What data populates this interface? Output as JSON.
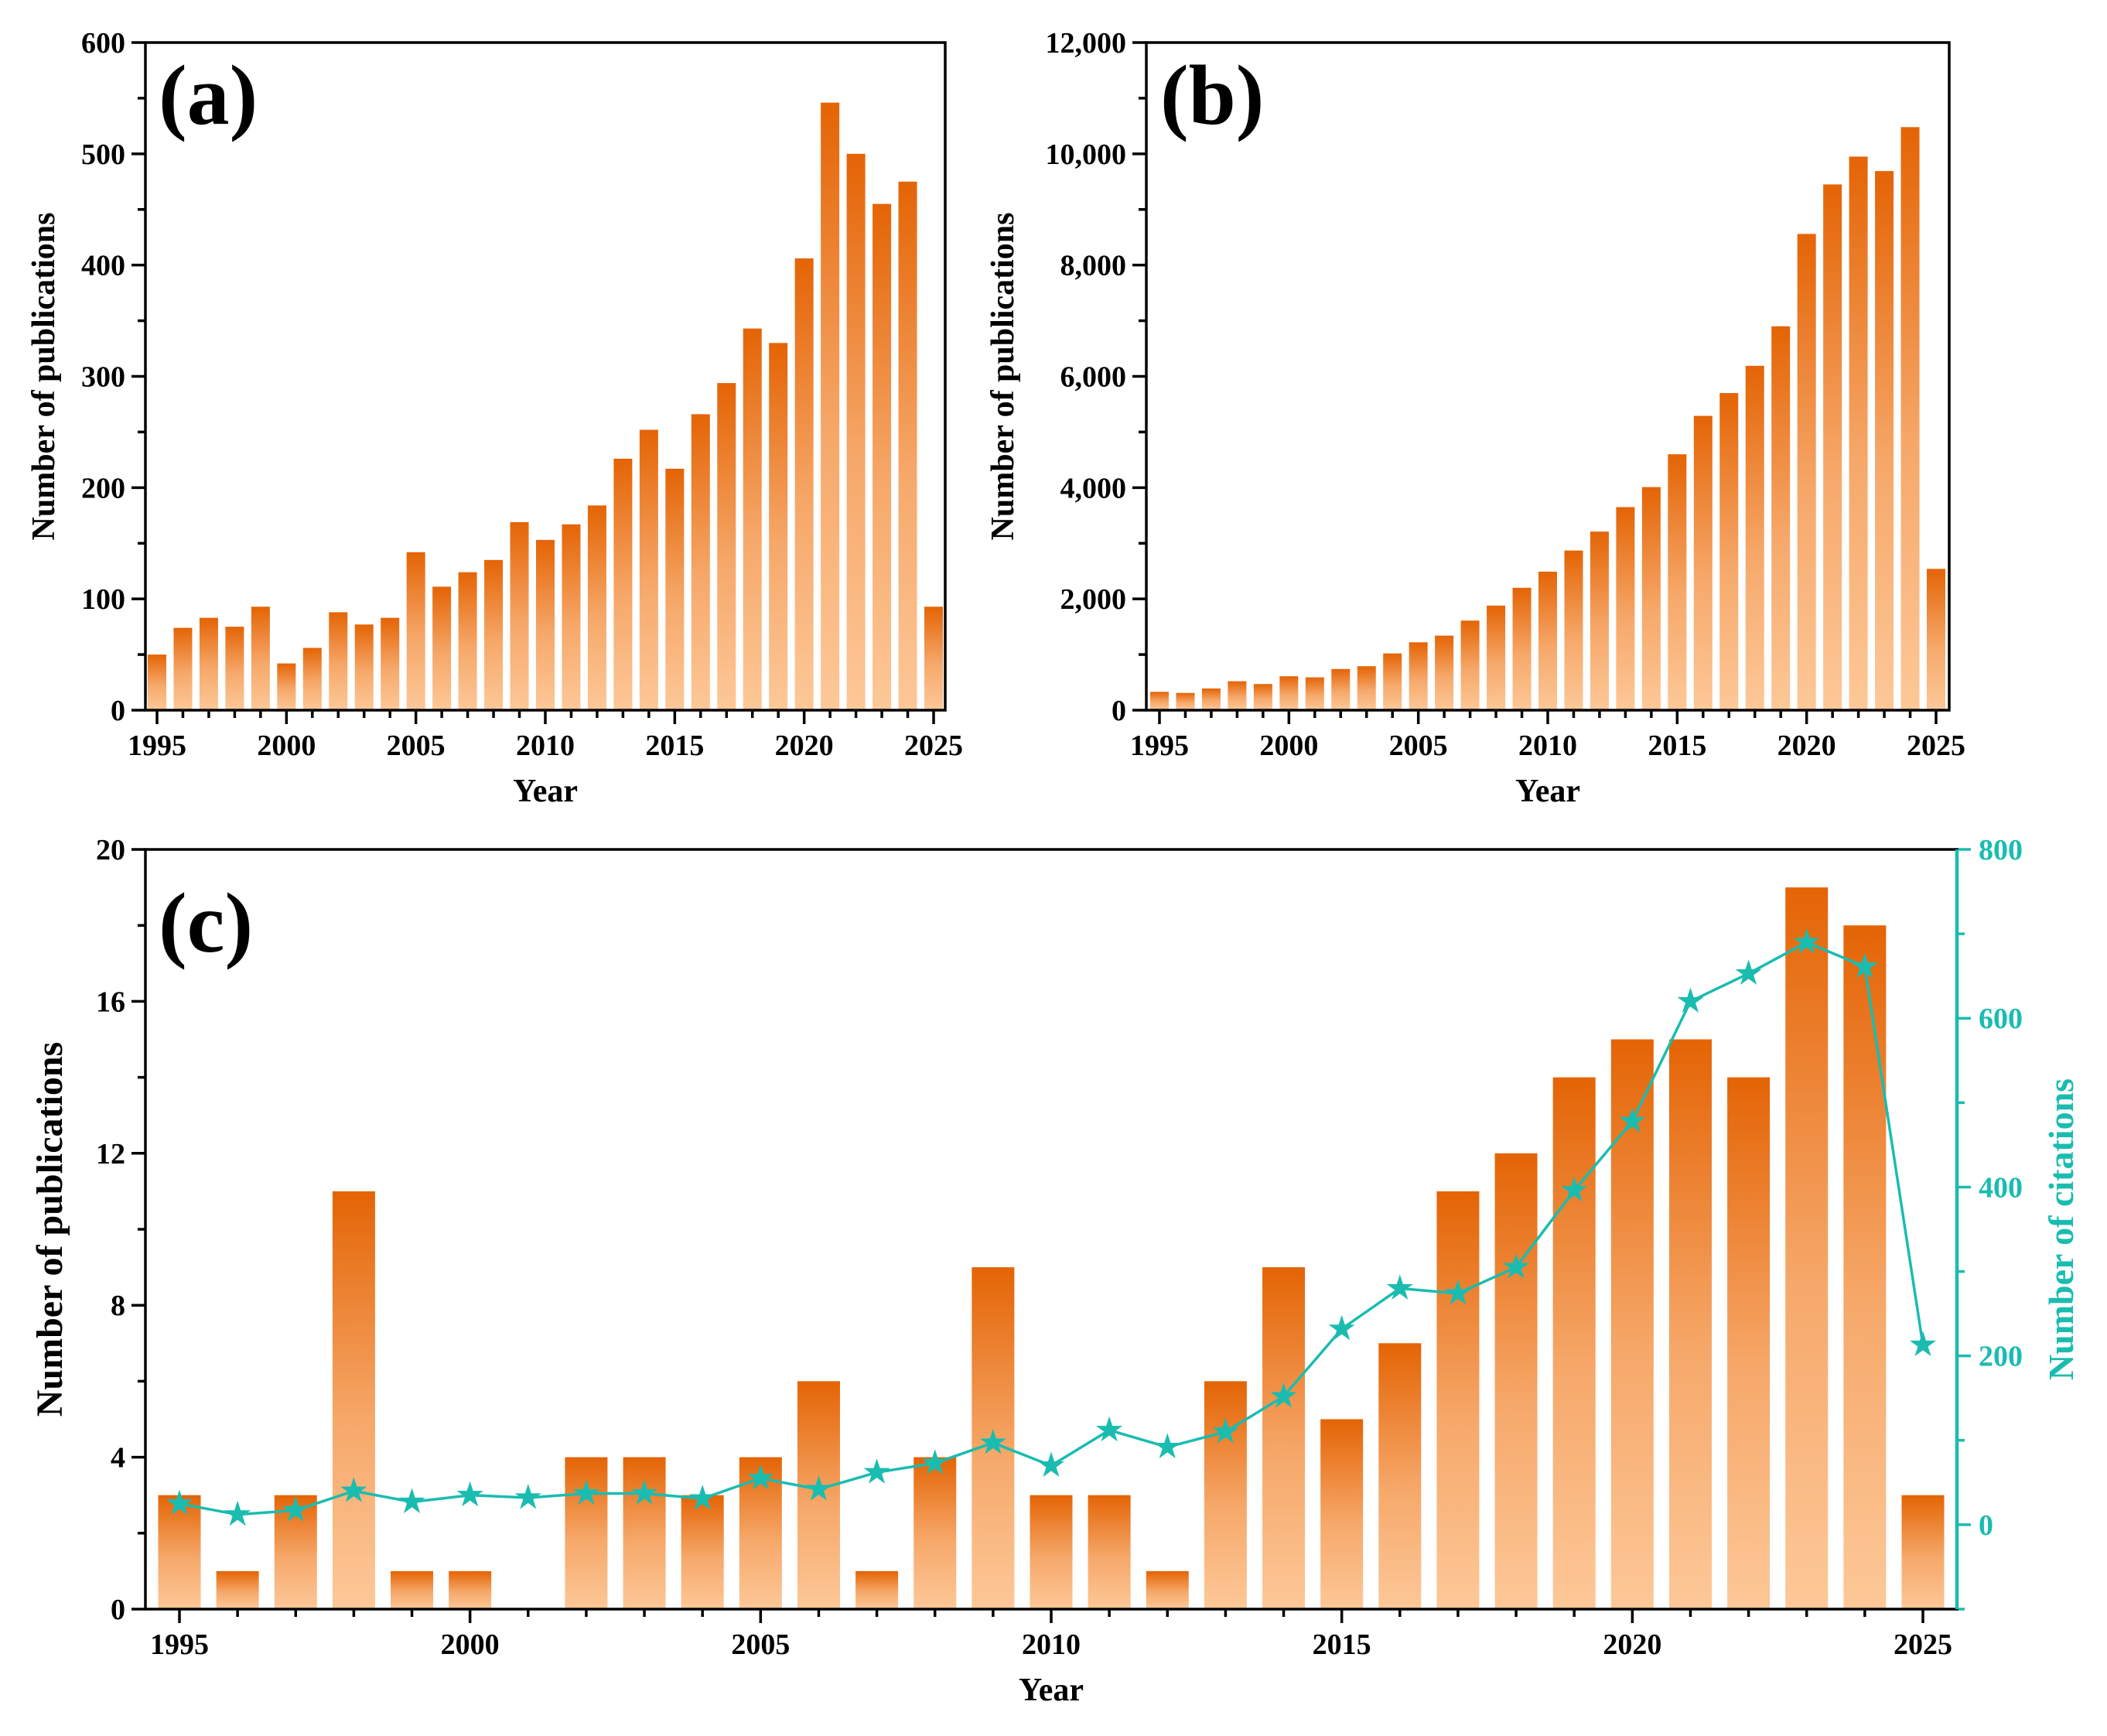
{
  "colors": {
    "bar_top": "#e46405",
    "bar_bottom": "#fdc898",
    "citation_line": "#1abcb0",
    "axis": "#000000"
  },
  "chart_data": [
    {
      "id": "a",
      "panel_label": "(a)",
      "type": "bar",
      "xlabel": "Year",
      "ylabel": "Number of publications",
      "x": [
        1995,
        1996,
        1997,
        1998,
        1999,
        2000,
        2001,
        2002,
        2003,
        2004,
        2005,
        2006,
        2007,
        2008,
        2009,
        2010,
        2011,
        2012,
        2013,
        2014,
        2015,
        2016,
        2017,
        2018,
        2019,
        2020,
        2021,
        2022,
        2023,
        2024,
        2025
      ],
      "values": [
        50,
        74,
        83,
        75,
        93,
        42,
        56,
        88,
        77,
        83,
        142,
        111,
        124,
        135,
        169,
        153,
        167,
        184,
        226,
        252,
        217,
        266,
        294,
        343,
        330,
        406,
        546,
        500,
        455,
        475,
        93
      ],
      "ylim": [
        0,
        600
      ],
      "yticks": [
        0,
        100,
        200,
        300,
        400,
        500,
        600
      ],
      "ytick_labels": [
        "0",
        "100",
        "200",
        "300",
        "400",
        "500",
        "600"
      ],
      "xticks": [
        1995,
        2000,
        2005,
        2010,
        2015,
        2020,
        2025
      ],
      "xtick_labels": [
        "1995",
        "2000",
        "2005",
        "2010",
        "2015",
        "2020",
        "2025"
      ]
    },
    {
      "id": "b",
      "panel_label": "(b)",
      "type": "bar",
      "xlabel": "Year",
      "ylabel": "Number of publications",
      "x": [
        1995,
        1996,
        1997,
        1998,
        1999,
        2000,
        2001,
        2002,
        2003,
        2004,
        2005,
        2006,
        2007,
        2008,
        2009,
        2010,
        2011,
        2012,
        2013,
        2014,
        2015,
        2016,
        2017,
        2018,
        2019,
        2020,
        2021,
        2022,
        2023,
        2024,
        2025
      ],
      "values": [
        330,
        310,
        390,
        520,
        470,
        610,
        590,
        740,
        790,
        1020,
        1220,
        1340,
        1610,
        1880,
        2200,
        2490,
        2870,
        3210,
        3650,
        4010,
        4600,
        5290,
        5700,
        6190,
        6900,
        8560,
        9450,
        9950,
        9690,
        10480,
        2540
      ],
      "ylim": [
        0,
        12000
      ],
      "yticks": [
        0,
        2000,
        4000,
        6000,
        8000,
        10000,
        12000
      ],
      "ytick_labels": [
        "0",
        "2,000",
        "4,000",
        "6,000",
        "8,000",
        "10,000",
        "12,000"
      ],
      "xticks": [
        1995,
        2000,
        2005,
        2010,
        2015,
        2020,
        2025
      ],
      "xtick_labels": [
        "1995",
        "2000",
        "2005",
        "2010",
        "2015",
        "2020",
        "2025"
      ]
    },
    {
      "id": "c",
      "panel_label": "(c)",
      "type": "bar+line",
      "xlabel": "Year",
      "ylabel": "Number of publications",
      "y2label": "Number of citations",
      "x": [
        1995,
        1996,
        1997,
        1998,
        1999,
        2000,
        2001,
        2002,
        2003,
        2004,
        2005,
        2006,
        2007,
        2008,
        2009,
        2010,
        2011,
        2012,
        2013,
        2014,
        2015,
        2016,
        2017,
        2018,
        2019,
        2020,
        2021,
        2022,
        2023,
        2024,
        2025
      ],
      "values": [
        3,
        1,
        3,
        11,
        1,
        1,
        0,
        4,
        4,
        3,
        4,
        6,
        1,
        4,
        9,
        3,
        3,
        1,
        6,
        9,
        5,
        7,
        11,
        12,
        14,
        15,
        15,
        14,
        19,
        18,
        3
      ],
      "citations": [
        25,
        12,
        17,
        40,
        27,
        35,
        32,
        37,
        37,
        31,
        55,
        42,
        62,
        73,
        97,
        70,
        112,
        92,
        110,
        152,
        232,
        280,
        274,
        305,
        396,
        478,
        620,
        653,
        690,
        661,
        213
      ],
      "ylim": [
        0,
        20
      ],
      "y2lim": [
        -100,
        800
      ],
      "yticks": [
        0,
        4,
        8,
        12,
        16,
        20
      ],
      "ytick_labels": [
        "0",
        "4",
        "8",
        "12",
        "16",
        "20"
      ],
      "y2ticks": [
        0,
        200,
        400,
        600,
        800
      ],
      "y2tick_labels": [
        "0",
        "200",
        "400",
        "600",
        "800"
      ],
      "xticks": [
        1995,
        2000,
        2005,
        2010,
        2015,
        2020,
        2025
      ],
      "xtick_labels": [
        "1995",
        "2000",
        "2005",
        "2010",
        "2015",
        "2020",
        "2025"
      ]
    }
  ]
}
